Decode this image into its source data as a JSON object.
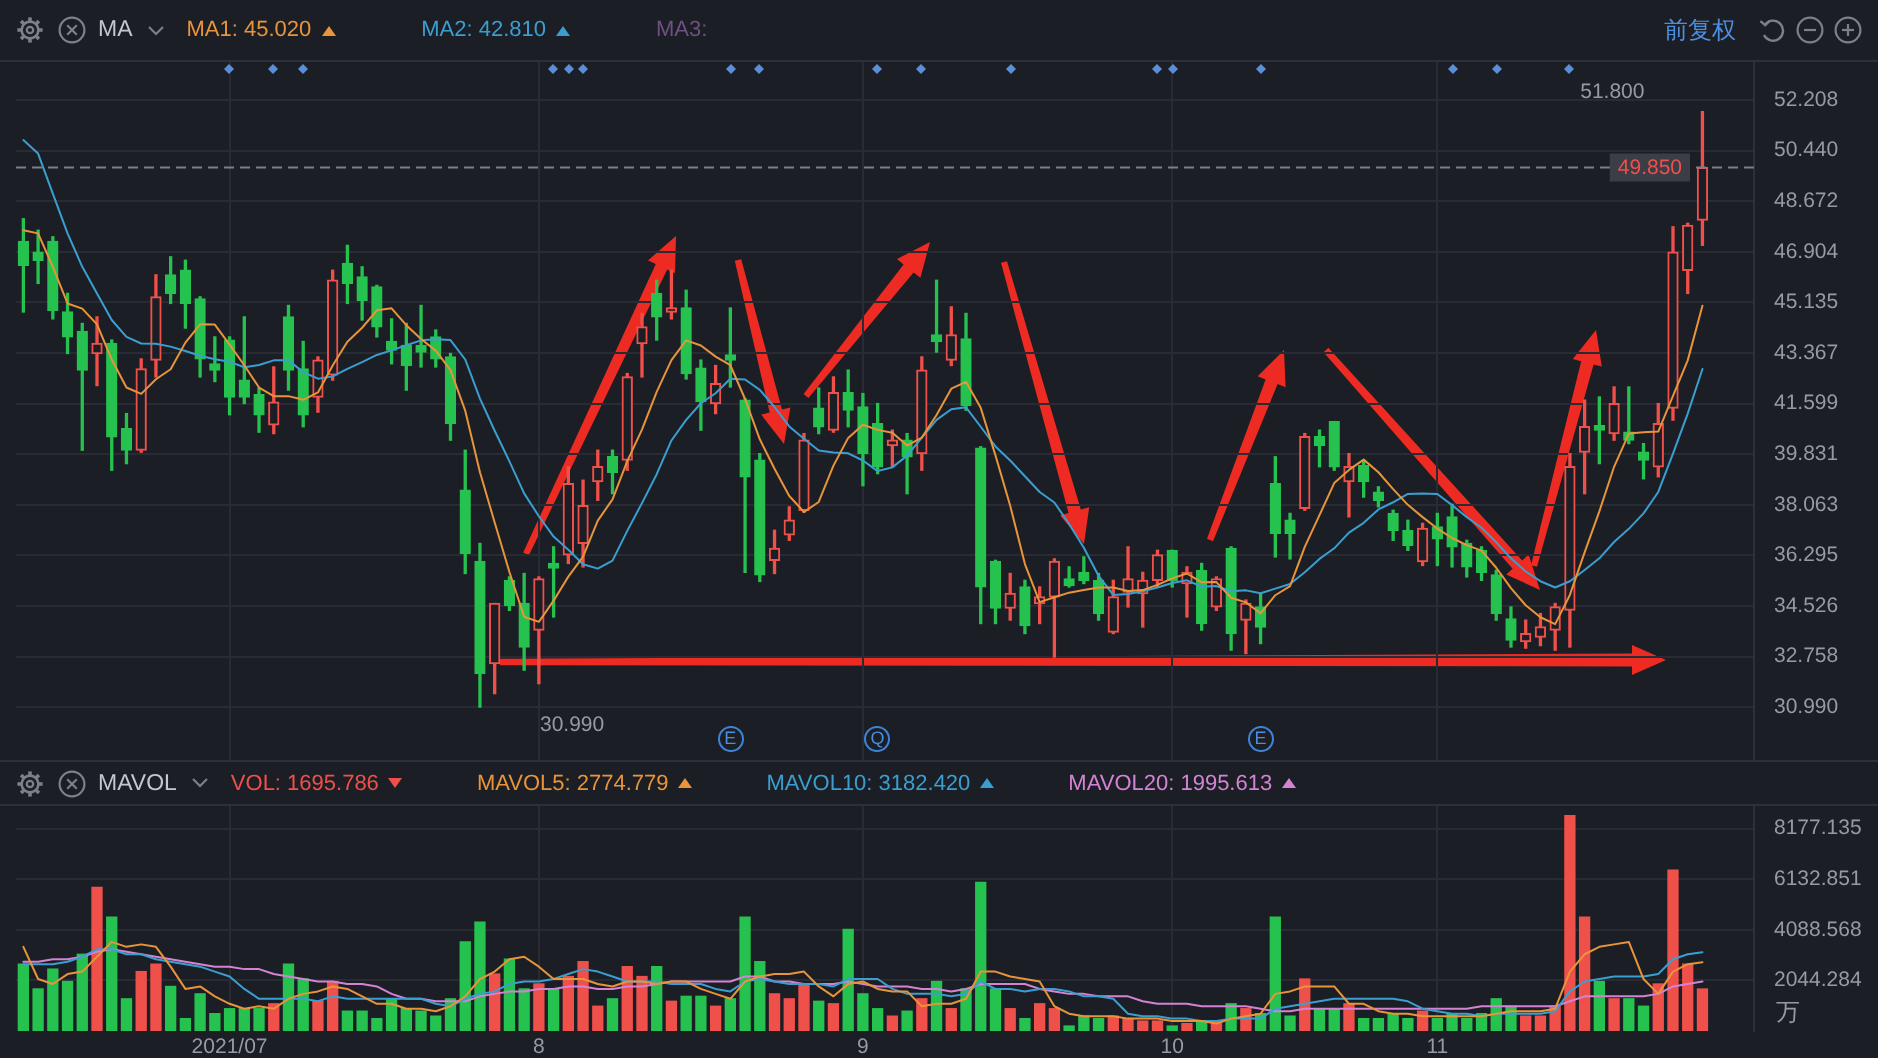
{
  "chart_data": [
    {
      "type": "candlestick",
      "legend_title": "MA",
      "legend": "top left",
      "categories": [
        null,
        null,
        null,
        null,
        null,
        null,
        null,
        null,
        null,
        null,
        null,
        null,
        null,
        null,
        "2021/07",
        null,
        null,
        null,
        null,
        null,
        null,
        null,
        null,
        null,
        null,
        null,
        null,
        null,
        null,
        null,
        null,
        null,
        null,
        null,
        null,
        "8",
        null,
        null,
        null,
        null,
        null,
        null,
        null,
        null,
        null,
        null,
        null,
        null,
        null,
        null,
        null,
        null,
        null,
        null,
        null,
        null,
        null,
        "9",
        null,
        null,
        null,
        null,
        null,
        null,
        null,
        null,
        null,
        null,
        null,
        null,
        null,
        null,
        null,
        null,
        null,
        null,
        null,
        null,
        "10",
        null,
        null,
        null,
        null,
        null,
        null,
        null,
        null,
        null,
        null,
        null,
        null,
        null,
        null,
        null,
        null,
        null,
        "11",
        null,
        null,
        null,
        null,
        null,
        null,
        null,
        null,
        null,
        null,
        null,
        null,
        null,
        null,
        null,
        null,
        null,
        null
      ],
      "ohlc": [
        [
          47.27,
          48.06,
          44.8,
          46.43
        ],
        [
          46.89,
          47.66,
          45.8,
          46.61
        ],
        [
          47.27,
          47.43,
          44.56,
          44.86
        ],
        [
          44.8,
          45.45,
          43.35,
          43.93
        ],
        [
          44.12,
          44.4,
          39.97,
          42.77
        ],
        [
          43.35,
          44.63,
          42.23,
          43.7
        ],
        [
          43.7,
          43.82,
          39.27,
          40.44
        ],
        [
          40.72,
          41.25,
          39.5,
          39.97
        ],
        [
          39.97,
          43.16,
          39.9,
          42.81
        ],
        [
          43.12,
          46.1,
          42.53,
          45.33
        ],
        [
          46.1,
          46.73,
          45.1,
          45.45
        ],
        [
          46.26,
          46.61,
          44.24,
          45.1
        ],
        [
          45.26,
          45.33,
          42.53,
          43.16
        ],
        [
          42.99,
          43.93,
          42.37,
          42.77
        ],
        [
          43.82,
          43.93,
          41.21,
          41.83
        ],
        [
          42.42,
          44.63,
          41.6,
          41.83
        ],
        [
          41.91,
          42.14,
          40.6,
          41.21
        ],
        [
          40.86,
          42.88,
          40.55,
          41.65
        ],
        [
          44.63,
          45.03,
          42.07,
          42.77
        ],
        [
          42.81,
          43.77,
          40.79,
          41.21
        ],
        [
          41.83,
          43.23,
          41.3,
          43.12
        ],
        [
          42.6,
          46.26,
          42.42,
          45.91
        ],
        [
          46.5,
          47.13,
          45.1,
          45.8
        ],
        [
          46.03,
          46.38,
          44.52,
          45.21
        ],
        [
          45.68,
          45.73,
          43.93,
          44.28
        ],
        [
          43.77,
          44.56,
          42.99,
          43.47
        ],
        [
          43.63,
          44.4,
          42.07,
          42.93
        ],
        [
          43.63,
          45.03,
          42.88,
          43.4
        ],
        [
          43.93,
          44.17,
          42.88,
          43.16
        ],
        [
          43.23,
          43.35,
          40.32,
          40.9
        ],
        [
          38.57,
          39.97,
          35.66,
          36.36
        ],
        [
          36.08,
          36.71,
          30.99,
          32.16
        ],
        [
          32.51,
          34.61,
          31.46,
          34.61
        ],
        [
          35.42,
          35.54,
          34.37,
          34.54
        ],
        [
          34.61,
          35.66,
          32.28,
          33.09
        ],
        [
          33.68,
          35.54,
          31.81,
          35.47
        ],
        [
          36.01,
          36.59,
          34.14,
          35.85
        ],
        [
          36.31,
          39.39,
          36.01,
          38.8
        ],
        [
          36.71,
          38.92,
          35.89,
          38.03
        ],
        [
          38.87,
          39.97,
          38.22,
          39.39
        ],
        [
          39.74,
          39.97,
          38.45,
          39.2
        ],
        [
          39.62,
          42.65,
          39.27,
          42.53
        ],
        [
          43.7,
          44.75,
          42.53,
          44.28
        ],
        [
          45.45,
          45.91,
          43.82,
          44.63
        ],
        [
          44.8,
          46.26,
          44.56,
          44.94
        ],
        [
          44.94,
          45.56,
          42.46,
          42.65
        ],
        [
          42.84,
          43.12,
          40.67,
          41.67
        ],
        [
          41.6,
          42.93,
          41.25,
          42.3
        ],
        [
          43.3,
          44.94,
          42.18,
          43.12
        ],
        [
          41.72,
          41.77,
          35.7,
          39.04
        ],
        [
          39.62,
          39.85,
          35.38,
          35.61
        ],
        [
          36.12,
          37.17,
          35.66,
          36.54
        ],
        [
          37.01,
          37.99,
          36.82,
          37.52
        ],
        [
          37.87,
          40.55,
          37.8,
          40.32
        ],
        [
          41.44,
          42.14,
          40.55,
          40.79
        ],
        [
          40.67,
          42.53,
          40.6,
          41.98
        ],
        [
          41.98,
          42.77,
          40.79,
          41.37
        ],
        [
          41.48,
          41.95,
          38.73,
          39.85
        ],
        [
          40.9,
          41.6,
          39.15,
          39.39
        ],
        [
          40.13,
          40.67,
          39.39,
          40.32
        ],
        [
          40.32,
          40.55,
          38.45,
          39.74
        ],
        [
          39.85,
          43.23,
          39.27,
          42.77
        ],
        [
          44,
          45.91,
          43.4,
          43.77
        ],
        [
          43.12,
          44.98,
          42.93,
          44
        ],
        [
          43.86,
          44.75,
          41.37,
          41.53
        ],
        [
          40.04,
          40.09,
          33.91,
          35.19
        ],
        [
          36.08,
          36.12,
          33.91,
          34.45
        ],
        [
          34.45,
          35.66,
          34.03,
          34.96
        ],
        [
          35.19,
          35.42,
          33.56,
          33.84
        ],
        [
          34.61,
          35.19,
          33.91,
          34.84
        ],
        [
          34.84,
          36.17,
          32.74,
          36.08
        ],
        [
          35.47,
          35.89,
          35.19,
          35.24
        ],
        [
          35.7,
          36.24,
          35.31,
          35.42
        ],
        [
          35.42,
          35.66,
          34.03,
          34.26
        ],
        [
          33.61,
          35.42,
          33.56,
          34.84
        ],
        [
          35.01,
          36.59,
          34.49,
          35.47
        ],
        [
          34.96,
          35.7,
          33.79,
          35.42
        ],
        [
          35.42,
          36.47,
          35.19,
          36.31
        ],
        [
          36.47,
          36.47,
          35.19,
          35.42
        ],
        [
          35.31,
          35.89,
          34.14,
          35.7
        ],
        [
          35.77,
          36.01,
          33.68,
          33.91
        ],
        [
          34.49,
          35.54,
          34.37,
          35.47
        ],
        [
          36.54,
          36.59,
          32.98,
          33.56
        ],
        [
          34.03,
          34.73,
          32.86,
          34.61
        ],
        [
          34.49,
          34.96,
          33.21,
          33.79
        ],
        [
          38.8,
          39.74,
          36.24,
          37.06
        ],
        [
          37.52,
          37.76,
          36.17,
          37.06
        ],
        [
          37.94,
          40.55,
          37.87,
          40.44
        ],
        [
          40.44,
          40.67,
          39.39,
          40.13
        ],
        [
          40.97,
          40.97,
          39.27,
          39.39
        ],
        [
          38.87,
          39.85,
          37.64,
          39.39
        ],
        [
          39.43,
          39.62,
          38.33,
          38.87
        ],
        [
          38.5,
          38.69,
          37.99,
          38.22
        ],
        [
          37.76,
          37.87,
          36.82,
          37.17
        ],
        [
          37.17,
          37.52,
          36.47,
          36.64
        ],
        [
          36.08,
          37.41,
          35.94,
          37.24
        ],
        [
          37.29,
          37.76,
          35.94,
          36.87
        ],
        [
          37.64,
          38.08,
          35.89,
          36.59
        ],
        [
          36.71,
          36.82,
          35.54,
          35.89
        ],
        [
          36.47,
          36.59,
          35.42,
          35.7
        ],
        [
          35.61,
          35.77,
          34.03,
          34.26
        ],
        [
          34.07,
          34.49,
          33.09,
          33.33
        ],
        [
          33.28,
          34.03,
          33.05,
          33.56
        ],
        [
          33.44,
          34.26,
          33.14,
          33.79
        ],
        [
          33.68,
          34.61,
          32.98,
          34.49
        ],
        [
          34.38,
          39.85,
          33.09,
          39.39
        ],
        [
          39.9,
          41.72,
          38.45,
          40.79
        ],
        [
          40.83,
          41.83,
          39.5,
          40.67
        ],
        [
          40.55,
          42.18,
          40.32,
          41.6
        ],
        [
          40.6,
          42.18,
          40.2,
          40.32
        ],
        [
          39.9,
          40.2,
          38.97,
          39.62
        ],
        [
          39.39,
          41.6,
          39.04,
          40.9
        ],
        [
          41.44,
          47.78,
          41.02,
          46.89
        ],
        [
          46.26,
          47.9,
          45.45,
          47.83
        ],
        [
          48.01,
          51.8,
          47.13,
          49.85
        ]
      ],
      "colors": [
        "#25c24f",
        "#25c24f",
        "#25c24f",
        "#25c24f",
        "#25c24f",
        "#f0504a",
        "#25c24f",
        "#25c24f",
        "#f0504a",
        "#f0504a",
        "#25c24f",
        "#25c24f",
        "#25c24f",
        "#25c24f",
        "#25c24f",
        "#25c24f",
        "#25c24f",
        "#f0504a",
        "#25c24f",
        "#25c24f",
        "#f0504a",
        "#f0504a",
        "#25c24f",
        "#25c24f",
        "#25c24f",
        "#25c24f",
        "#25c24f",
        "#25c24f",
        "#25c24f",
        "#25c24f",
        "#25c24f",
        "#25c24f",
        "#f0504a",
        "#25c24f",
        "#25c24f",
        "#f0504a",
        "#25c24f",
        "#f0504a",
        "#f0504a",
        "#f0504a",
        "#25c24f",
        "#f0504a",
        "#f0504a",
        "#25c24f",
        "#f0504a",
        "#25c24f",
        "#25c24f",
        "#f0504a",
        "#25c24f",
        "#25c24f",
        "#25c24f",
        "#f0504a",
        "#f0504a",
        "#f0504a",
        "#25c24f",
        "#f0504a",
        "#25c24f",
        "#25c24f",
        "#25c24f",
        "#f0504a",
        "#25c24f",
        "#f0504a",
        "#25c24f",
        "#f0504a",
        "#25c24f",
        "#25c24f",
        "#25c24f",
        "#f0504a",
        "#25c24f",
        "#f0504a",
        "#f0504a",
        "#25c24f",
        "#25c24f",
        "#25c24f",
        "#f0504a",
        "#f0504a",
        "#f0504a",
        "#f0504a",
        "#25c24f",
        "#f0504a",
        "#25c24f",
        "#f0504a",
        "#25c24f",
        "#f0504a",
        "#25c24f",
        "#25c24f",
        "#25c24f",
        "#f0504a",
        "#25c24f",
        "#25c24f",
        "#f0504a",
        "#25c24f",
        "#25c24f",
        "#25c24f",
        "#25c24f",
        "#f0504a",
        "#25c24f",
        "#25c24f",
        "#25c24f",
        "#25c24f",
        "#25c24f",
        "#25c24f",
        "#f0504a",
        "#f0504a",
        "#f0504a",
        "#f0504a",
        "#f0504a",
        "#25c24f",
        "#f0504a",
        "#25c24f",
        "#25c24f",
        "#f0504a",
        "#f0504a",
        "#f0504a",
        "#f0504a"
      ],
      "series": [
        {
          "name": "MA1: 45.020",
          "type": "line",
          "color": "#e8943a",
          "values": [
            47.66,
            47.55,
            46.38,
            45.1,
            44.92,
            44.37,
            43.14,
            42.16,
            41.94,
            42.45,
            42.8,
            43.73,
            44.37,
            44.36,
            43.66,
            42.94,
            42.16,
            41.86,
            41.86,
            41.73,
            41.99,
            42.93,
            43.76,
            44.25,
            44.86,
            44.93,
            44.34,
            43.86,
            43.45,
            42.77,
            41.35,
            39.2,
            37.44,
            35.71,
            34.15,
            33.97,
            34.71,
            35.55,
            36.25,
            37.51,
            38.25,
            39.59,
            40.69,
            42.01,
            43.12,
            43.81,
            43.63,
            43.24,
            42.94,
            41.76,
            40.35,
            39.32,
            38.37,
            37.81,
            38.16,
            39.43,
            40.4,
            40.86,
            40.68,
            40.58,
            40.13,
            40.41,
            41.2,
            42.12,
            42.36,
            41.45,
            39.79,
            38.03,
            35.99,
            34.66,
            34.83,
            34.99,
            35.08,
            35.17,
            35.17,
            35.05,
            35.08,
            35.26,
            35.49,
            35.66,
            35.35,
            35.36,
            34.81,
            34.65,
            34.27,
            34.9,
            35.22,
            36.59,
            37.7,
            38.82,
            39.28,
            39.64,
            39.2,
            38.61,
            38.06,
            37.63,
            37.23,
            36.9,
            36.65,
            36.46,
            35.86,
            35.15,
            34.55,
            34.13,
            33.89,
            34.91,
            36.4,
            37.83,
            39.39,
            40.55,
            40.6,
            40.62,
            41.87,
            43.11,
            45.02
          ]
        },
        {
          "name": "MA2: 42.810",
          "type": "line",
          "color": "#3a9fd0",
          "values": [
            50.81,
            50.34,
            48.94,
            47.55,
            46.38,
            45.45,
            44.52,
            43.93,
            43.7,
            43.69,
            43.59,
            43.44,
            43.27,
            43.15,
            43.06,
            42.87,
            42.95,
            43.11,
            43.11,
            42.7,
            42.47,
            42.55,
            42.81,
            43.05,
            43.3,
            43.46,
            43.64,
            43.81,
            43.85,
            43.82,
            43.14,
            41.77,
            40.65,
            39.58,
            38.46,
            37.66,
            36.95,
            36.49,
            35.98,
            35.83,
            36.11,
            37.15,
            38.12,
            39.13,
            40.31,
            41.03,
            41.61,
            41.96,
            42.47,
            42.44,
            42.08,
            41.48,
            40.8,
            40.37,
            39.96,
            39.89,
            39.86,
            39.61,
            39.24,
            39.37,
            39.78,
            40.41,
            41.03,
            41.4,
            41.47,
            40.79,
            40.1,
            39.61,
            39.06,
            38.51,
            38.14,
            37.39,
            36.56,
            35.58,
            34.91,
            34.94,
            35.04,
            35.17,
            35.33,
            35.42,
            35.2,
            35.22,
            35.04,
            35.07,
            34.97,
            35.13,
            35.29,
            35.7,
            36.17,
            36.54,
            37.09,
            37.43,
            37.9,
            38.15,
            38.44,
            38.46,
            38.44,
            38.05,
            37.63,
            37.26,
            36.75,
            36.19,
            35.73,
            35.39,
            35.17,
            35.39,
            35.78,
            36.19,
            36.76,
            37.22,
            37.76,
            38.51,
            39.85,
            41.25,
            42.81
          ]
        }
      ],
      "ylim": [
        29.14,
        53.54
      ],
      "yticks": [
        {
          "value": 30.99,
          "label": "30.990"
        },
        32.758,
        34.526,
        36.295,
        38.063,
        39.831,
        41.599,
        43.367,
        45.135,
        46.904,
        48.672,
        {
          "value": 50.44,
          "label": "50.440"
        },
        52.208
      ],
      "tick_labels": "y",
      "grid": true,
      "ref_lines": [
        {
          "axis": "y",
          "value": 49.85,
          "label": "49.850",
          "color": "#7d8089",
          "line_style": "dashed"
        }
      ],
      "annotations": [
        "MA3:",
        "51.800",
        "30.990",
        "E",
        "Q",
        "E",
        "前复权"
      ]
    },
    {
      "type": "bar",
      "legend_title": "MAVOL",
      "legend": "top left",
      "categories": [
        null,
        null,
        null,
        null,
        null,
        null,
        null,
        null,
        null,
        null,
        null,
        null,
        null,
        null,
        "2021/07",
        null,
        null,
        null,
        null,
        null,
        null,
        null,
        null,
        null,
        null,
        null,
        null,
        null,
        null,
        null,
        null,
        null,
        null,
        null,
        null,
        "8",
        null,
        null,
        null,
        null,
        null,
        null,
        null,
        null,
        null,
        null,
        null,
        null,
        null,
        null,
        null,
        null,
        null,
        null,
        null,
        null,
        null,
        "9",
        null,
        null,
        null,
        null,
        null,
        null,
        null,
        null,
        null,
        null,
        null,
        null,
        null,
        null,
        null,
        null,
        null,
        null,
        null,
        null,
        "10",
        null,
        null,
        null,
        null,
        null,
        null,
        null,
        null,
        null,
        null,
        null,
        null,
        null,
        null,
        null,
        null,
        null,
        "11",
        null,
        null,
        null,
        null,
        null,
        null,
        null,
        null,
        null,
        null,
        null,
        null,
        null,
        null,
        null,
        null,
        null,
        null
      ],
      "series": [
        {
          "name": "VOL: 1695.786",
          "type": "bar",
          "color": "#f0504a",
          "colors": [
            "#25c24f",
            "#25c24f",
            "#25c24f",
            "#25c24f",
            "#25c24f",
            "#f0504a",
            "#25c24f",
            "#25c24f",
            "#f0504a",
            "#f0504a",
            "#25c24f",
            "#25c24f",
            "#25c24f",
            "#25c24f",
            "#25c24f",
            "#25c24f",
            "#25c24f",
            "#f0504a",
            "#25c24f",
            "#25c24f",
            "#f0504a",
            "#f0504a",
            "#25c24f",
            "#25c24f",
            "#25c24f",
            "#25c24f",
            "#25c24f",
            "#25c24f",
            "#25c24f",
            "#25c24f",
            "#25c24f",
            "#25c24f",
            "#f0504a",
            "#25c24f",
            "#25c24f",
            "#f0504a",
            "#25c24f",
            "#f0504a",
            "#f0504a",
            "#f0504a",
            "#25c24f",
            "#f0504a",
            "#f0504a",
            "#25c24f",
            "#f0504a",
            "#25c24f",
            "#25c24f",
            "#f0504a",
            "#25c24f",
            "#25c24f",
            "#25c24f",
            "#f0504a",
            "#f0504a",
            "#f0504a",
            "#25c24f",
            "#f0504a",
            "#25c24f",
            "#25c24f",
            "#25c24f",
            "#f0504a",
            "#25c24f",
            "#f0504a",
            "#25c24f",
            "#f0504a",
            "#25c24f",
            "#25c24f",
            "#25c24f",
            "#f0504a",
            "#25c24f",
            "#f0504a",
            "#f0504a",
            "#25c24f",
            "#25c24f",
            "#25c24f",
            "#f0504a",
            "#f0504a",
            "#f0504a",
            "#f0504a",
            "#25c24f",
            "#f0504a",
            "#25c24f",
            "#f0504a",
            "#25c24f",
            "#f0504a",
            "#25c24f",
            "#25c24f",
            "#25c24f",
            "#f0504a",
            "#25c24f",
            "#25c24f",
            "#f0504a",
            "#25c24f",
            "#25c24f",
            "#25c24f",
            "#25c24f",
            "#f0504a",
            "#25c24f",
            "#25c24f",
            "#25c24f",
            "#25c24f",
            "#25c24f",
            "#25c24f",
            "#f0504a",
            "#f0504a",
            "#f0504a",
            "#f0504a",
            "#f0504a",
            "#25c24f",
            "#f0504a",
            "#25c24f",
            "#25c24f",
            "#f0504a",
            "#f0504a",
            "#f0504a",
            "#f0504a"
          ],
          "values": [
            2700,
            1700,
            2500,
            2000,
            3100,
            5800,
            4600,
            1300,
            2400,
            2700,
            1800,
            500,
            1500,
            700,
            900,
            900,
            900,
            1100,
            2700,
            2100,
            1200,
            2000,
            800,
            800,
            500,
            1300,
            900,
            800,
            600,
            1300,
            3600,
            4400,
            2300,
            2900,
            1700,
            1900,
            1700,
            2200,
            2800,
            1000,
            1300,
            2600,
            2200,
            2600,
            1200,
            1400,
            1400,
            1000,
            1300,
            4600,
            2800,
            1500,
            1300,
            1900,
            1200,
            1100,
            4100,
            1500,
            900,
            600,
            800,
            1300,
            2000,
            900,
            1700,
            6000,
            1700,
            900,
            500,
            1100,
            900,
            200,
            600,
            500,
            600,
            500,
            400,
            400,
            200,
            300,
            400,
            400,
            1100,
            900,
            700,
            4600,
            600,
            2100,
            900,
            900,
            1100,
            500,
            500,
            700,
            500,
            800,
            500,
            700,
            500,
            700,
            1300,
            1000,
            600,
            600,
            1000,
            8700,
            4600,
            2000,
            1300,
            1300,
            1000,
            1900,
            6500,
            2700,
            1695.786
          ]
        },
        {
          "name": "MAVOL5: 2774.779",
          "type": "line",
          "color": "#e8943a",
          "values": [
            3400,
            2100,
            1900,
            2300,
            2400,
            3000,
            3600,
            3400,
            3500,
            3400,
            2600,
            1700,
            1800,
            1400,
            1100,
            900,
            1000,
            900,
            1300,
            1500,
            1600,
            1800,
            1700,
            1400,
            1100,
            1100,
            900,
            900,
            800,
            1000,
            1400,
            2100,
            2400,
            2900,
            3000,
            2600,
            2100,
            2100,
            2100,
            1900,
            1800,
            2000,
            2000,
            1900,
            2000,
            2000,
            1700,
            1500,
            1300,
            2000,
            2200,
            2300,
            2300,
            2400,
            1800,
            1400,
            1900,
            2000,
            1700,
            1600,
            1600,
            1000,
            1100,
            1100,
            1300,
            2400,
            2400,
            2200,
            2100,
            2000,
            1000,
            700,
            600,
            600,
            600,
            500,
            500,
            500,
            400,
            400,
            400,
            300,
            500,
            600,
            700,
            1500,
            1600,
            1800,
            1800,
            1800,
            1100,
            1100,
            800,
            700,
            700,
            600,
            600,
            600,
            600,
            600,
            700,
            800,
            800,
            800,
            900,
            2400,
            3100,
            3400,
            3500,
            3600,
            2100,
            1500,
            2400,
            2700,
            2774.779
          ]
        },
        {
          "name": "MAVOL10: 3182.420",
          "type": "line",
          "color": "#3a9fd0",
          "values": [
            2700,
            2700,
            2700,
            2800,
            3000,
            3300,
            3300,
            3100,
            3100,
            2900,
            2800,
            2700,
            2600,
            2400,
            2200,
            1700,
            1300,
            1300,
            1300,
            1300,
            1200,
            1400,
            1300,
            1300,
            1300,
            1300,
            1300,
            1300,
            1100,
            1000,
            1300,
            1500,
            1600,
            1900,
            2000,
            2000,
            2100,
            2300,
            2500,
            2400,
            2200,
            2000,
            2000,
            2000,
            1900,
            1900,
            1900,
            1700,
            1600,
            2000,
            2100,
            2000,
            1900,
            1900,
            1900,
            1800,
            2100,
            2100,
            2100,
            1700,
            1500,
            1500,
            1500,
            1400,
            1500,
            2000,
            1700,
            1700,
            1600,
            1700,
            1700,
            1600,
            1400,
            1400,
            1300,
            700,
            600,
            600,
            500,
            500,
            400,
            400,
            500,
            500,
            500,
            900,
            1000,
            1100,
            1200,
            1300,
            1300,
            1300,
            1300,
            1300,
            1200,
            900,
            800,
            700,
            700,
            600,
            700,
            700,
            700,
            700,
            800,
            1600,
            2000,
            2100,
            2200,
            2200,
            2200,
            2300,
            2900,
            3100,
            3182.42
          ]
        },
        {
          "name": "MAVOL20: 1995.613",
          "type": "line",
          "color": "#d483d4",
          "values": [
            2800,
            2800,
            2900,
            2900,
            3000,
            3200,
            3300,
            3200,
            3100,
            3000,
            2900,
            2800,
            2700,
            2600,
            2600,
            2500,
            2500,
            2300,
            2200,
            2100,
            2000,
            2000,
            1900,
            1900,
            1800,
            1500,
            1300,
            1300,
            1200,
            1200,
            1200,
            1400,
            1500,
            1600,
            1600,
            1700,
            1700,
            1800,
            1800,
            1700,
            1700,
            1800,
            1800,
            1900,
            2000,
            2000,
            2000,
            2000,
            2000,
            2200,
            2200,
            2000,
            2000,
            1900,
            1900,
            1900,
            2000,
            1900,
            1800,
            1800,
            1800,
            1700,
            1700,
            1600,
            1700,
            1900,
            1900,
            1900,
            1900,
            1700,
            1600,
            1500,
            1500,
            1400,
            1400,
            1400,
            1200,
            1100,
            1100,
            1100,
            1000,
            1000,
            1000,
            1000,
            900,
            800,
            800,
            900,
            900,
            900,
            900,
            900,
            900,
            900,
            900,
            900,
            900,
            900,
            900,
            1000,
            1000,
            1000,
            1000,
            1000,
            1000,
            1200,
            1400,
            1400,
            1400,
            1400,
            1400,
            1500,
            1800,
            1900,
            1995.613
          ]
        }
      ],
      "ylim": [
        0,
        9090
      ],
      "yticks": [
        2044.284,
        4088.568,
        6132.851,
        8177.135
      ],
      "ylabel": "万",
      "grid": true
    }
  ]
}
